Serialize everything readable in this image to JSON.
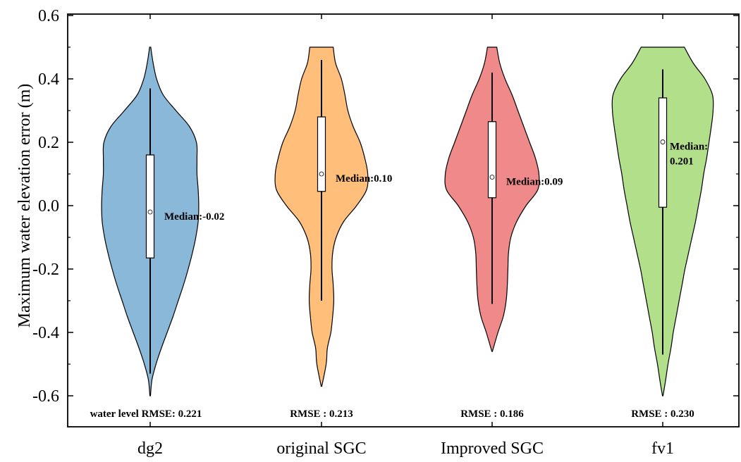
{
  "chart_data": {
    "type": "violin",
    "ylabel": "Maximum water elevation error (m)",
    "xlabel": "",
    "ylim": [
      -0.6,
      0.6
    ],
    "yticks": [
      "-0.6",
      "-0.4",
      "-0.2",
      "0.0",
      "0.2",
      "0.4",
      "0.6"
    ],
    "grid": false,
    "categories": [
      "dg2",
      "original SGC",
      "Improved SGC",
      "fv1"
    ],
    "series": [
      {
        "category": "dg2",
        "color": "#8ab8d9",
        "range": [
          -0.6,
          0.5
        ],
        "whisker_low": -0.53,
        "whisker_high": 0.37,
        "q1": -0.165,
        "q3": 0.16,
        "median": -0.02,
        "median_label": "Median:-0.02",
        "rmse_label": "water level RMSE: 0.221",
        "profile": [
          [
            -0.6,
            0.5
          ],
          [
            -0.55,
            3
          ],
          [
            -0.5,
            10
          ],
          [
            -0.45,
            19
          ],
          [
            -0.4,
            29
          ],
          [
            -0.35,
            39
          ],
          [
            -0.3,
            48
          ],
          [
            -0.25,
            57
          ],
          [
            -0.2,
            65
          ],
          [
            -0.15,
            72
          ],
          [
            -0.1,
            78
          ],
          [
            -0.05,
            82
          ],
          [
            0.0,
            83
          ],
          [
            0.05,
            82
          ],
          [
            0.1,
            80
          ],
          [
            0.15,
            80
          ],
          [
            0.2,
            79
          ],
          [
            0.25,
            67
          ],
          [
            0.3,
            44
          ],
          [
            0.35,
            22
          ],
          [
            0.4,
            11
          ],
          [
            0.45,
            5
          ],
          [
            0.5,
            1
          ]
        ]
      },
      {
        "category": "original SGC",
        "color": "#ffbe7a",
        "range": [
          -0.57,
          0.5
        ],
        "whisker_low": -0.3,
        "whisker_high": 0.46,
        "q1": 0.045,
        "q3": 0.28,
        "median": 0.1,
        "median_label": "Median:0.10",
        "rmse_label": "RMSE : 0.213",
        "profile": [
          [
            -0.57,
            0.5
          ],
          [
            -0.5,
            8
          ],
          [
            -0.45,
            10
          ],
          [
            -0.4,
            16
          ],
          [
            -0.35,
            19
          ],
          [
            -0.3,
            21
          ],
          [
            -0.25,
            20
          ],
          [
            -0.2,
            18
          ],
          [
            -0.15,
            19
          ],
          [
            -0.1,
            25
          ],
          [
            -0.05,
            38
          ],
          [
            0.0,
            60
          ],
          [
            0.05,
            77
          ],
          [
            0.1,
            79
          ],
          [
            0.15,
            74
          ],
          [
            0.2,
            66
          ],
          [
            0.25,
            54
          ],
          [
            0.3,
            45
          ],
          [
            0.35,
            40
          ],
          [
            0.4,
            34
          ],
          [
            0.45,
            24
          ],
          [
            0.5,
            20
          ]
        ]
      },
      {
        "category": "Improved SGC",
        "color": "#f08a8a",
        "range": [
          -0.46,
          0.5
        ],
        "whisker_low": -0.31,
        "whisker_high": 0.42,
        "q1": 0.025,
        "q3": 0.265,
        "median": 0.09,
        "median_label": "Median:0.09",
        "rmse_label": "RMSE : 0.186",
        "profile": [
          [
            -0.46,
            0.5
          ],
          [
            -0.4,
            10
          ],
          [
            -0.35,
            19
          ],
          [
            -0.3,
            24
          ],
          [
            -0.25,
            26
          ],
          [
            -0.2,
            27
          ],
          [
            -0.15,
            28
          ],
          [
            -0.1,
            32
          ],
          [
            -0.05,
            42
          ],
          [
            0.0,
            58
          ],
          [
            0.05,
            78
          ],
          [
            0.1,
            80
          ],
          [
            0.15,
            74
          ],
          [
            0.2,
            64
          ],
          [
            0.25,
            54
          ],
          [
            0.3,
            44
          ],
          [
            0.35,
            34
          ],
          [
            0.4,
            22
          ],
          [
            0.45,
            13
          ],
          [
            0.5,
            8
          ]
        ]
      },
      {
        "category": "fv1",
        "color": "#b2df8a",
        "range": [
          -0.6,
          0.5
        ],
        "whisker_low": -0.47,
        "whisker_high": 0.43,
        "q1": -0.005,
        "q3": 0.34,
        "median": 0.201,
        "median_label": [
          "Median:",
          "0.201"
        ],
        "rmse_label": "RMSE : 0.230",
        "profile": [
          [
            -0.6,
            0.5
          ],
          [
            -0.55,
            5
          ],
          [
            -0.5,
            9
          ],
          [
            -0.45,
            14
          ],
          [
            -0.4,
            18
          ],
          [
            -0.35,
            23
          ],
          [
            -0.3,
            28
          ],
          [
            -0.25,
            33
          ],
          [
            -0.2,
            38
          ],
          [
            -0.15,
            44
          ],
          [
            -0.1,
            50
          ],
          [
            -0.05,
            56
          ],
          [
            0.0,
            61
          ],
          [
            0.05,
            66
          ],
          [
            0.1,
            70
          ],
          [
            0.15,
            75
          ],
          [
            0.2,
            79
          ],
          [
            0.25,
            83
          ],
          [
            0.3,
            86
          ],
          [
            0.35,
            85
          ],
          [
            0.4,
            72
          ],
          [
            0.45,
            52
          ],
          [
            0.5,
            37
          ]
        ]
      }
    ]
  }
}
